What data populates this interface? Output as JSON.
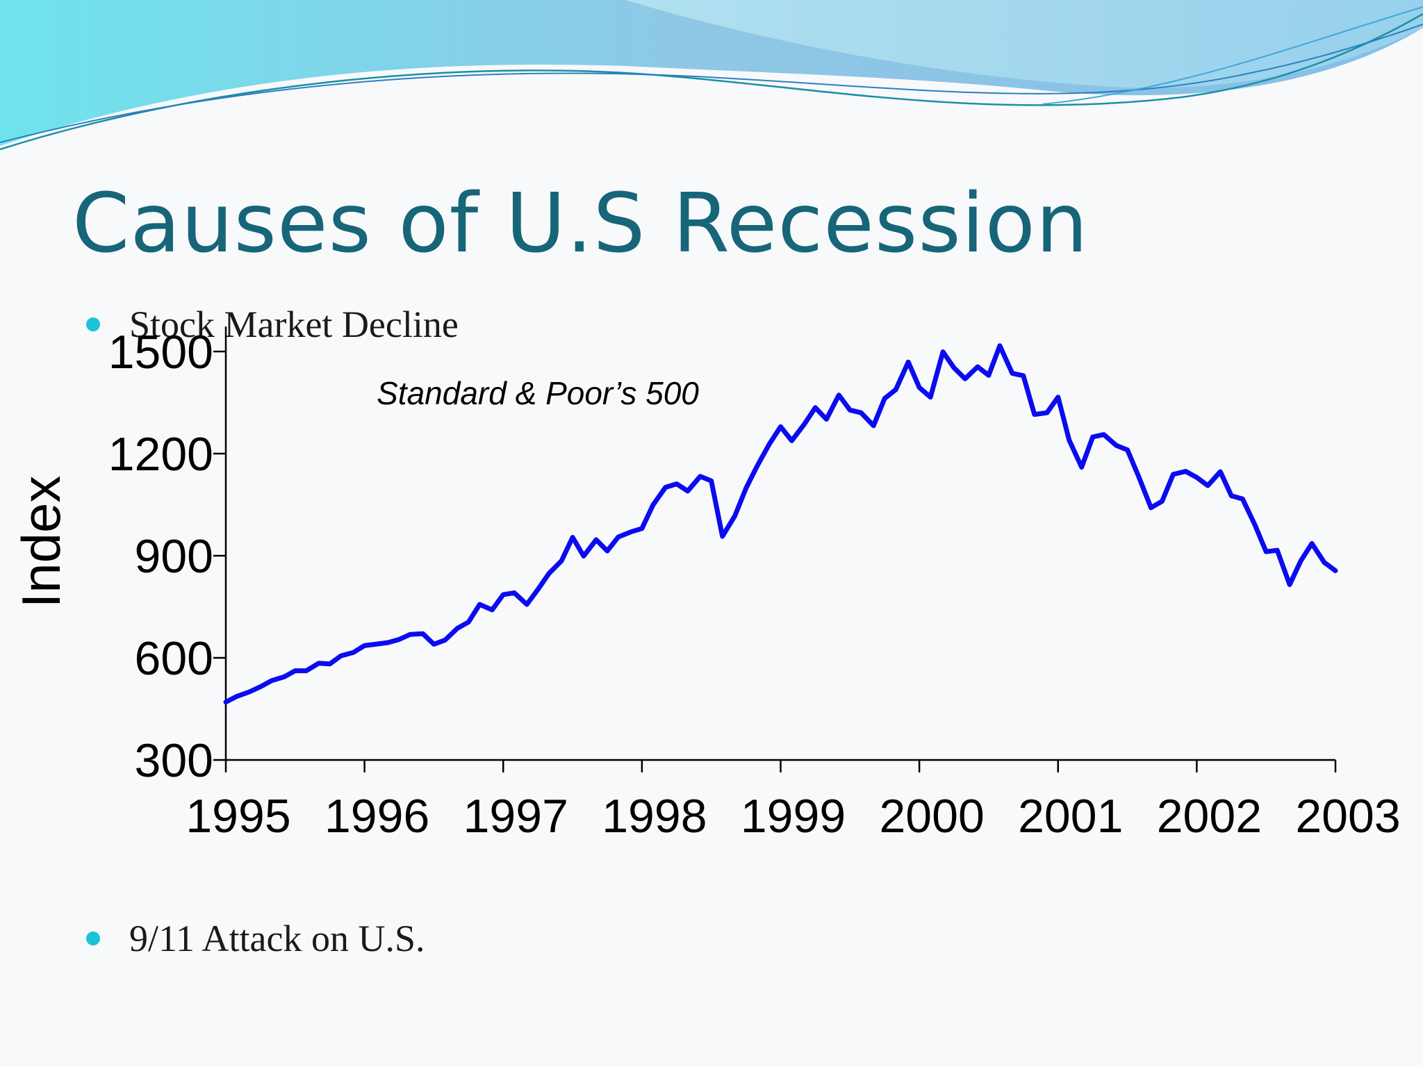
{
  "slide": {
    "title": "Causes of U.S Recession",
    "bullets": [
      {
        "text": "Stock Market Decline"
      },
      {
        "text": "9/11 Attack on U.S."
      }
    ],
    "bullet_color": "#1cc3d6",
    "title_color": "#176579"
  },
  "chart_data": {
    "type": "line",
    "title": "Standard & Poor’s 500",
    "xlabel": "",
    "ylabel": "Index",
    "xlim": [
      1995,
      2003
    ],
    "ylim": [
      300,
      1500
    ],
    "x_ticks": [
      "1995",
      "1996",
      "1997",
      "1998",
      "1999",
      "2000",
      "2001",
      "2002",
      "2003"
    ],
    "y_ticks": [
      "1500",
      "1200",
      "900",
      "600",
      "300"
    ],
    "grid": false,
    "series": [
      {
        "color": "#0b0bf0",
        "points": [
          [
            1995.0,
            470
          ],
          [
            1995.08,
            487
          ],
          [
            1995.17,
            500
          ],
          [
            1995.25,
            515
          ],
          [
            1995.33,
            533
          ],
          [
            1995.42,
            544
          ],
          [
            1995.5,
            562
          ],
          [
            1995.58,
            562
          ],
          [
            1995.67,
            584
          ],
          [
            1995.75,
            582
          ],
          [
            1995.83,
            606
          ],
          [
            1995.92,
            616
          ],
          [
            1996.0,
            636
          ],
          [
            1996.08,
            640
          ],
          [
            1996.17,
            645
          ],
          [
            1996.25,
            654
          ],
          [
            1996.33,
            669
          ],
          [
            1996.42,
            671
          ],
          [
            1996.5,
            640
          ],
          [
            1996.58,
            652
          ],
          [
            1996.67,
            687
          ],
          [
            1996.75,
            705
          ],
          [
            1996.83,
            757
          ],
          [
            1996.92,
            741
          ],
          [
            1997.0,
            786
          ],
          [
            1997.08,
            791
          ],
          [
            1997.17,
            757
          ],
          [
            1997.25,
            801
          ],
          [
            1997.33,
            848
          ],
          [
            1997.42,
            885
          ],
          [
            1997.5,
            954
          ],
          [
            1997.58,
            899
          ],
          [
            1997.67,
            947
          ],
          [
            1997.75,
            914
          ],
          [
            1997.83,
            955
          ],
          [
            1997.92,
            970
          ],
          [
            1998.0,
            980
          ],
          [
            1998.08,
            1049
          ],
          [
            1998.17,
            1101
          ],
          [
            1998.25,
            1111
          ],
          [
            1998.33,
            1090
          ],
          [
            1998.42,
            1133
          ],
          [
            1998.5,
            1120
          ],
          [
            1998.58,
            957
          ],
          [
            1998.67,
            1017
          ],
          [
            1998.75,
            1098
          ],
          [
            1998.83,
            1163
          ],
          [
            1998.92,
            1229
          ],
          [
            1999.0,
            1279
          ],
          [
            1999.08,
            1238
          ],
          [
            1999.17,
            1286
          ],
          [
            1999.25,
            1335
          ],
          [
            1999.33,
            1301
          ],
          [
            1999.42,
            1372
          ],
          [
            1999.5,
            1328
          ],
          [
            1999.58,
            1320
          ],
          [
            1999.67,
            1282
          ],
          [
            1999.75,
            1362
          ],
          [
            1999.83,
            1388
          ],
          [
            1999.92,
            1469
          ],
          [
            2000.0,
            1394
          ],
          [
            2000.08,
            1366
          ],
          [
            2000.17,
            1499
          ],
          [
            2000.25,
            1452
          ],
          [
            2000.33,
            1420
          ],
          [
            2000.42,
            1455
          ],
          [
            2000.5,
            1430
          ],
          [
            2000.58,
            1517
          ],
          [
            2000.67,
            1436
          ],
          [
            2000.75,
            1429
          ],
          [
            2000.83,
            1315
          ],
          [
            2000.92,
            1320
          ],
          [
            2001.0,
            1366
          ],
          [
            2001.08,
            1240
          ],
          [
            2001.17,
            1160
          ],
          [
            2001.25,
            1249
          ],
          [
            2001.33,
            1256
          ],
          [
            2001.42,
            1224
          ],
          [
            2001.5,
            1211
          ],
          [
            2001.58,
            1134
          ],
          [
            2001.67,
            1041
          ],
          [
            2001.75,
            1060
          ],
          [
            2001.83,
            1139
          ],
          [
            2001.92,
            1148
          ],
          [
            2002.0,
            1130
          ],
          [
            2002.08,
            1106
          ],
          [
            2002.17,
            1147
          ],
          [
            2002.25,
            1076
          ],
          [
            2002.33,
            1067
          ],
          [
            2002.42,
            990
          ],
          [
            2002.5,
            912
          ],
          [
            2002.58,
            916
          ],
          [
            2002.67,
            815
          ],
          [
            2002.75,
            885
          ],
          [
            2002.83,
            936
          ],
          [
            2002.92,
            880
          ],
          [
            2003.0,
            856
          ]
        ]
      }
    ]
  }
}
